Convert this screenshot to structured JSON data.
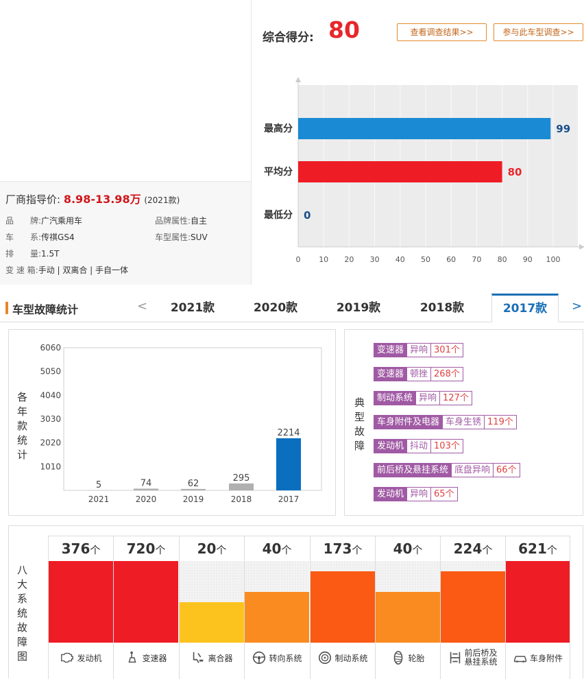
{
  "header": {
    "price_label": "厂商指导价:",
    "price_value": "8.98-13.98万",
    "model_year": "(2021款)"
  },
  "specs": [
    {
      "key": "品　　牌:",
      "value": "广汽乘用车"
    },
    {
      "key": "品牌属性:",
      "value": "自主"
    },
    {
      "key": "车　　系:",
      "value": "传祺GS4"
    },
    {
      "key": "车型属性:",
      "value": "SUV"
    },
    {
      "key": "排　　量:",
      "value": "1.5T"
    },
    {
      "key": "变 速 箱:",
      "value": "手动 | 双离合 | 手自一体"
    }
  ],
  "score": {
    "label": "综合得分:",
    "value": "80",
    "btn_results": "查看调查结果>>",
    "btn_join": "参与此车型调查>>"
  },
  "chart_data": [
    {
      "type": "bar",
      "orientation": "horizontal",
      "categories": [
        "最高分",
        "平均分",
        "最低分"
      ],
      "values": [
        99,
        80,
        0
      ],
      "colors": [
        "#1a8ad4",
        "#ee1c25",
        "#1a8ad4"
      ],
      "value_labels": [
        "99",
        "80",
        "0"
      ],
      "xlim": [
        0,
        100
      ],
      "xticks": [
        "0",
        "10",
        "20",
        "30",
        "40",
        "50",
        "60",
        "70",
        "80",
        "90",
        "100"
      ]
    },
    {
      "type": "bar",
      "categories": [
        "2021",
        "2020",
        "2019",
        "2018",
        "2017"
      ],
      "values": [
        5,
        74,
        62,
        295,
        2214
      ],
      "colors": [
        "#b0b0b0",
        "#b0b0b0",
        "#b0b0b0",
        "#b0b0b0",
        "#0a6fbf"
      ],
      "value_labels": [
        "5",
        "74",
        "62",
        "295",
        "2214"
      ],
      "ylim": [
        0,
        6060
      ],
      "yticks": [
        "6060",
        "5050",
        "4040",
        "3030",
        "2020",
        "1010"
      ],
      "ylabel": "各年款统计"
    },
    {
      "type": "bar",
      "categories": [
        "发动机",
        "变速器",
        "离合器",
        "转向系统",
        "制动系统",
        "轮胎",
        "前后桥及悬挂系统",
        "车身附件"
      ],
      "values": [
        376,
        720,
        20,
        40,
        173,
        40,
        224,
        621
      ],
      "fill_levels": [
        1.0,
        1.0,
        0.5,
        0.62,
        0.87,
        0.62,
        0.87,
        1.0
      ],
      "colors": [
        "#ee1c25",
        "#ee1c25",
        "#fcc31e",
        "#f98b21",
        "#fa5a14",
        "#f98b21",
        "#fa5a14",
        "#ee1c25"
      ],
      "unit": "个",
      "ylabel": "八大系统故障图"
    }
  ],
  "fault": {
    "title": "车型故障统计",
    "prev": "<",
    "next": ">",
    "tabs": [
      "2021款",
      "2020款",
      "2019款",
      "2018款",
      "2017款"
    ],
    "active_tab": "2017款",
    "annual_ylabel": "各年款统计",
    "typical_label": "典型故障",
    "eight_label": "八大系统故障图",
    "typical": [
      {
        "system": "变速器",
        "desc": "异响",
        "count": "301个"
      },
      {
        "system": "变速器",
        "desc": "顿挫",
        "count": "268个"
      },
      {
        "system": "制动系统",
        "desc": "异响",
        "count": "127个"
      },
      {
        "system": "车身附件及电器",
        "desc": "车身生锈",
        "count": "119个"
      },
      {
        "system": "发动机",
        "desc": "抖动",
        "count": "103个"
      },
      {
        "system": "前后桥及悬挂系统",
        "desc": "底盘异响",
        "count": "66个"
      },
      {
        "system": "发动机",
        "desc": "异响",
        "count": "65个"
      }
    ],
    "systems": [
      {
        "count": "376",
        "name": "发动机",
        "icon": "engine-icon"
      },
      {
        "count": "720",
        "name": "变速器",
        "icon": "gear-shift-icon"
      },
      {
        "count": "20",
        "name": "离合器",
        "icon": "clutch-icon"
      },
      {
        "count": "40",
        "name": "转向系统",
        "icon": "steering-wheel-icon"
      },
      {
        "count": "173",
        "name": "制动系统",
        "icon": "brake-disc-icon"
      },
      {
        "count": "40",
        "name": "轮胎",
        "icon": "tire-icon"
      },
      {
        "count": "224",
        "name": "前后桥及悬挂系统",
        "icon": "suspension-icon"
      },
      {
        "count": "621",
        "name": "车身附件",
        "icon": "car-body-icon"
      }
    ]
  }
}
